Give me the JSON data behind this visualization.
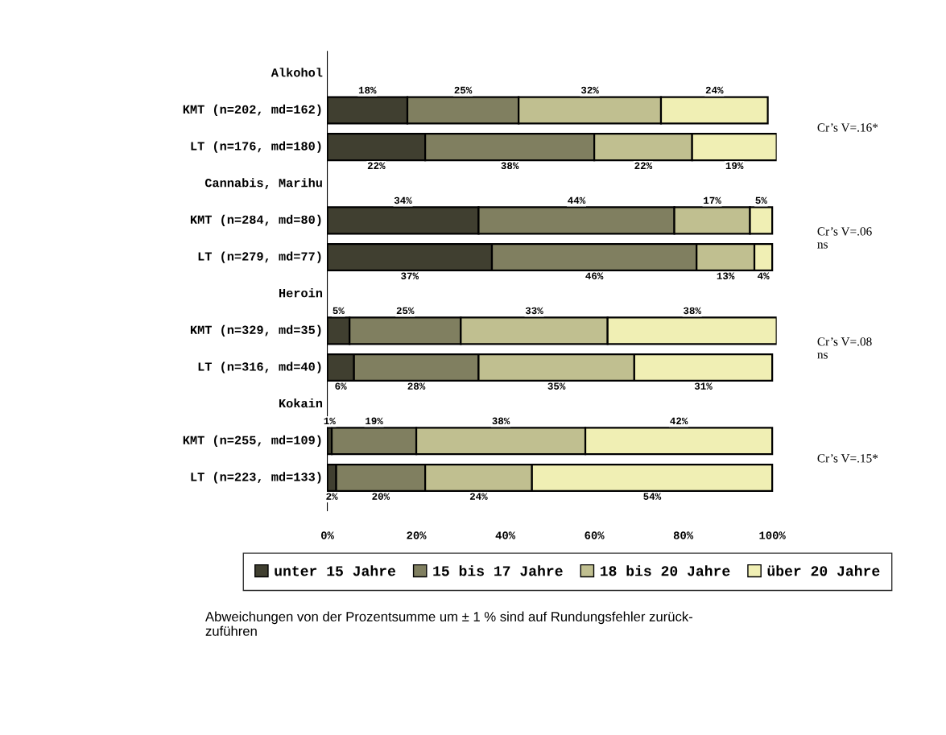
{
  "chart_data": {
    "type": "bar",
    "orientation": "horizontal",
    "stacked": true,
    "legend": "bottom",
    "grid": false,
    "categories": [
      "Alkohol",
      "KMT (n=202, md=162)",
      "LT (n=176, md=180)",
      "Cannabis, Marihu",
      "KMT (n=284, md=80)",
      "LT (n=279, md=77)",
      "Heroin",
      "KMT (n=329, md=35)",
      "LT (n=316, md=40)",
      "Kokain",
      "KMT (n=255, md=109)",
      "LT (n=223, md=133)"
    ],
    "series": [
      {
        "name": "unter 15 Jahre",
        "color": "#403f30",
        "values": [
          null,
          18,
          22,
          null,
          34,
          37,
          null,
          5,
          6,
          null,
          1,
          2
        ],
        "value_labels": [
          null,
          "18%",
          "22%",
          null,
          "34%",
          "37%",
          null,
          "5%",
          "6%",
          null,
          "1%",
          "2%"
        ]
      },
      {
        "name": "15 bis 17 Jahre",
        "color": "#807f60",
        "values": [
          null,
          25,
          38,
          null,
          44,
          46,
          null,
          25,
          28,
          null,
          19,
          20
        ],
        "value_labels": [
          null,
          "25%",
          "38%",
          null,
          "44%",
          "46%",
          null,
          "25%",
          "28%",
          null,
          "19%",
          "20%"
        ]
      },
      {
        "name": "18 bis 20 Jahre",
        "color": "#c0bf90",
        "values": [
          null,
          32,
          22,
          null,
          17,
          13,
          null,
          33,
          35,
          null,
          38,
          24
        ],
        "value_labels": [
          null,
          "32%",
          "22%",
          null,
          "17%",
          "13%",
          null,
          "33%",
          "35%",
          null,
          "38%",
          "24%"
        ]
      },
      {
        "name": "über 20 Jahre",
        "color": "#f0efb4",
        "values": [
          null,
          24,
          19,
          null,
          5,
          4,
          null,
          38,
          31,
          null,
          42,
          54
        ],
        "value_labels": [
          null,
          "24%",
          "19%",
          null,
          "5%",
          "4%",
          null,
          "38%",
          "31%",
          null,
          "42%",
          "54%"
        ]
      }
    ],
    "xlim": [
      0,
      101
    ],
    "xticks": [
      {
        "value": 0,
        "label": "0%"
      },
      {
        "value": 20,
        "label": "20%"
      },
      {
        "value": 40,
        "label": "40%"
      },
      {
        "value": 60,
        "label": "60%"
      },
      {
        "value": 80,
        "label": "80%"
      },
      {
        "value": 100,
        "label": "100%"
      }
    ],
    "annotations": [
      "Cr’s V=.16*",
      "Cr’s V=.06\nns",
      "Cr’s V=.08\nns",
      "Cr’s V=.15*",
      "Abweichungen von der Prozentsumme um ± 1 % sind auf Rundungsfehler zurück-\nzuführen"
    ]
  }
}
